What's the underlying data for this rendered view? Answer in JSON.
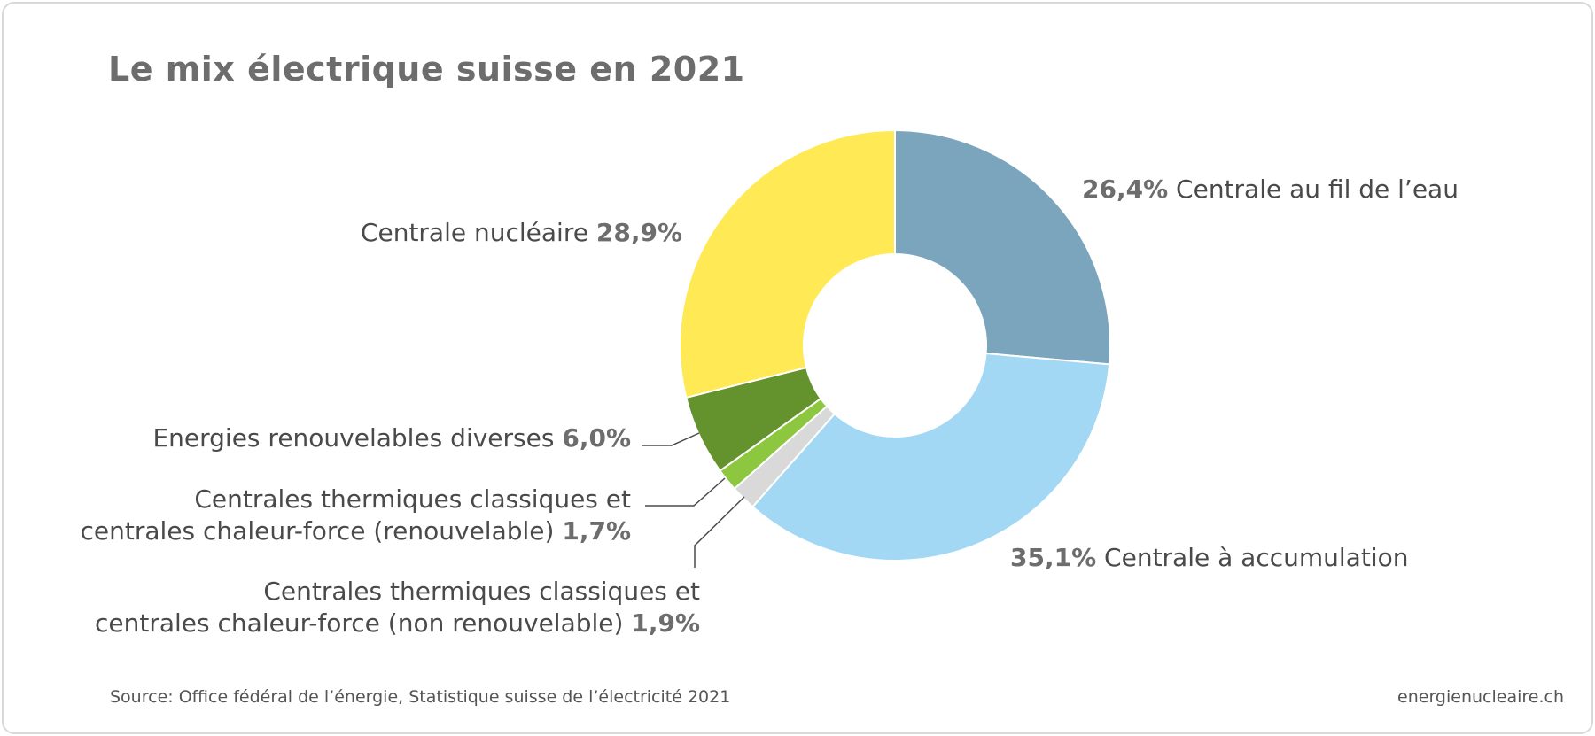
{
  "title": "Le mix électrique suisse en 2021",
  "source": "Source: Office fédéral de l’énergie, Statistique suisse de l’électricité 2021",
  "website": "energienucleaire.ch",
  "chart_data": {
    "type": "pie",
    "title": "Le mix électrique suisse en 2021",
    "donut": true,
    "slices": [
      {
        "name": "Centrale au fil de l’eau",
        "value": 26.4,
        "value_label": "26,4%",
        "color": "#7ba4bd"
      },
      {
        "name": "Centrale à accumulation",
        "value": 35.1,
        "value_label": "35,1%",
        "color": "#a3d8f4"
      },
      {
        "name": "Centrales thermiques classiques et centrales chaleur-force (non renouvelable)",
        "value": 1.9,
        "value_label": "1,9%",
        "color": "#d9d9d9"
      },
      {
        "name": "Centrales thermiques classiques et centrales chaleur-force (renouvelable)",
        "value": 1.7,
        "value_label": "1,7%",
        "color": "#8dc63f"
      },
      {
        "name": "Energies renouvelables diverses",
        "value": 6.0,
        "value_label": "6,0%",
        "color": "#64922d"
      },
      {
        "name": "Centrale nucléaire",
        "value": 28.9,
        "value_label": "28,9%",
        "color": "#ffe955"
      }
    ]
  },
  "labels": {
    "fil": {
      "pct": "26,4%",
      "text": "Centrale au fil de l’eau"
    },
    "accumulation": {
      "pct": "35,1%",
      "text": "Centrale à accumulation"
    },
    "nucleaire": {
      "text": "Centrale nucléaire",
      "pct": "28,9%"
    },
    "renouvelables": {
      "text": "Energies renouvelables diverses",
      "pct": "6,0%"
    },
    "thermique_renouvelable": {
      "line1": "Centrales thermiques classiques et",
      "line2": "centrales chaleur-force (renouvelable)",
      "pct": "1,7%"
    },
    "thermique_non_renouvelable": {
      "line1": "Centrales thermiques classiques et",
      "line2": "centrales chaleur-force (non renouvelable)",
      "pct": "1,9%"
    }
  }
}
